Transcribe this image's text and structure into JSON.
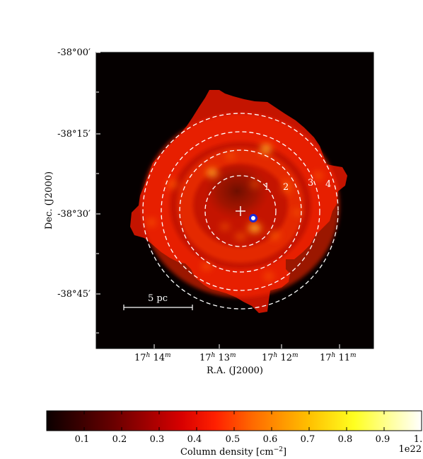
{
  "map": {
    "y_ticks": [
      "-38°00′",
      "-38°15′",
      "-38°30′",
      "-38°45′"
    ],
    "x_ticks": [
      {
        "h": "17",
        "m": "14"
      },
      {
        "h": "17",
        "m": "13"
      },
      {
        "h": "17",
        "m": "12"
      },
      {
        "h": "17",
        "m": "11"
      }
    ],
    "xlabel": "R.A. (J2000)",
    "ylabel": "Dec. (J2000)",
    "ring_labels": [
      "1",
      "2",
      "3",
      "4"
    ],
    "scale_bar_label": "5 pc",
    "center_marker": "cross",
    "source_marker": "circle",
    "source_marker_color": "#1a2ad6"
  },
  "colorbar": {
    "tick_labels": [
      "0.1",
      "0.2",
      "0.3",
      "0.4",
      "0.5",
      "0.6",
      "0.7",
      "0.8",
      "0.9",
      "1."
    ],
    "label": "Column density [cm",
    "label_exp": "−2",
    "label_close": "]",
    "multiplier": "1e22",
    "colormap": "hot",
    "range": [
      0.0,
      1.0
    ]
  },
  "colors": {
    "background": "#ffffff",
    "map_background": "#050000",
    "ring_color": "#ffffff"
  }
}
